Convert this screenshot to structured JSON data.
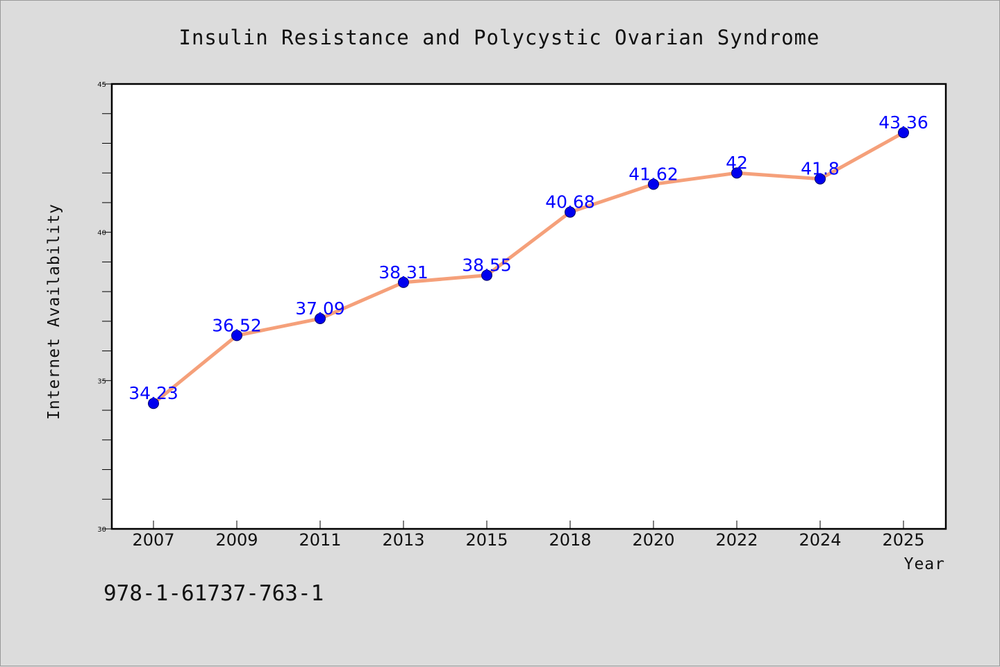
{
  "colors": {
    "background": "#dcdcdc",
    "plot_background": "#ffffff",
    "line": "#f5a07a",
    "marker": "#0000ee",
    "data_label": "#0000ff",
    "axis": "#000000"
  },
  "footer": {
    "code": "978-1-61737-763-1"
  },
  "chart_data": {
    "type": "line",
    "title": "Insulin Resistance and Polycystic Ovarian Syndrome",
    "xlabel": "Year",
    "ylabel": "Internet Availability",
    "categories": [
      "2007",
      "2009",
      "2011",
      "2013",
      "2015",
      "2018",
      "2020",
      "2022",
      "2024",
      "2025"
    ],
    "series": [
      {
        "values": [
          34.23,
          36.52,
          37.09,
          38.31,
          38.55,
          40.68,
          41.62,
          42,
          41.8,
          43.36
        ],
        "data_labels": [
          "34.23",
          "36.52",
          "37.09",
          "38.31",
          "38.55",
          "40.68",
          "41.62",
          "42",
          "41.8",
          "43.36"
        ]
      }
    ],
    "ylim": [
      30,
      45
    ],
    "yticks": [
      "30",
      "35",
      "40",
      "45"
    ],
    "y_minor_step": 1,
    "grid": false,
    "legend": "none"
  }
}
